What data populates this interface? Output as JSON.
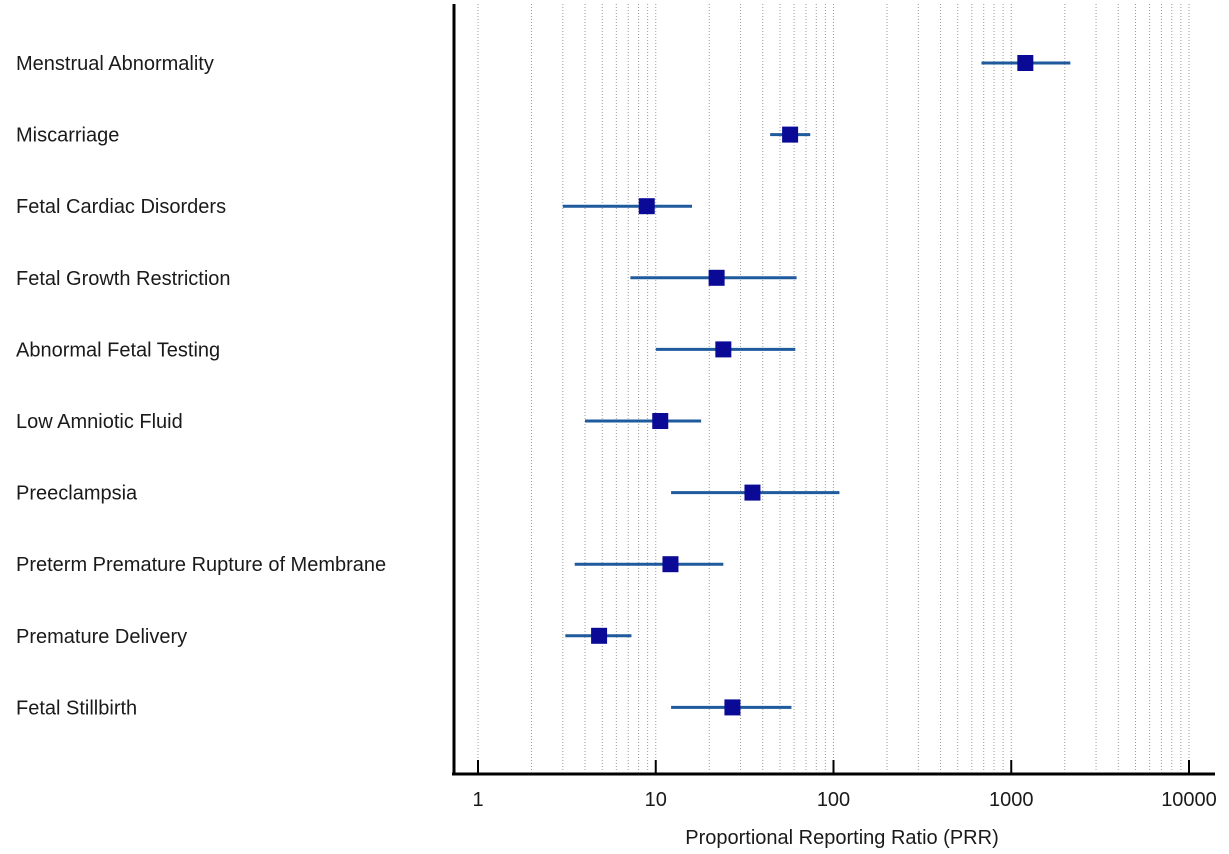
{
  "chart_data": {
    "type": "forest",
    "xlabel": "Proportional Reporting Ratio (PRR)",
    "xscale": "log",
    "xlim": [
      0.88,
      11000
    ],
    "xticks": [
      1,
      10,
      100,
      1000,
      10000
    ],
    "xtick_labels": [
      "1",
      "10",
      "100",
      "1000",
      "10000"
    ],
    "grid": "vertical minor dotted",
    "colors": {
      "marker": "#0a0a96",
      "ci_line": "#1e5a9c",
      "axis": "#000000",
      "grid": "#9a9a9a"
    },
    "categories": [
      "Menstrual Abnormality",
      "Miscarriage",
      "Fetal Cardiac Disorders",
      "Fetal Growth Restriction",
      "Abnormal Fetal Testing",
      "Low Amniotic Fluid",
      "Preeclampsia",
      "Preterm Premature Rupture of Membrane",
      "Premature Delivery",
      "Fetal Stillbirth"
    ],
    "estimates": [
      1200,
      57,
      8.9,
      22,
      24,
      10.6,
      35,
      12.1,
      4.8,
      27
    ],
    "ci_lower": [
      680,
      44,
      3.0,
      7.2,
      10.0,
      4.0,
      12.2,
      3.5,
      3.1,
      12.2
    ],
    "ci_upper": [
      2150,
      74,
      16.0,
      62,
      61,
      18.0,
      108,
      24.0,
      7.3,
      58
    ]
  }
}
